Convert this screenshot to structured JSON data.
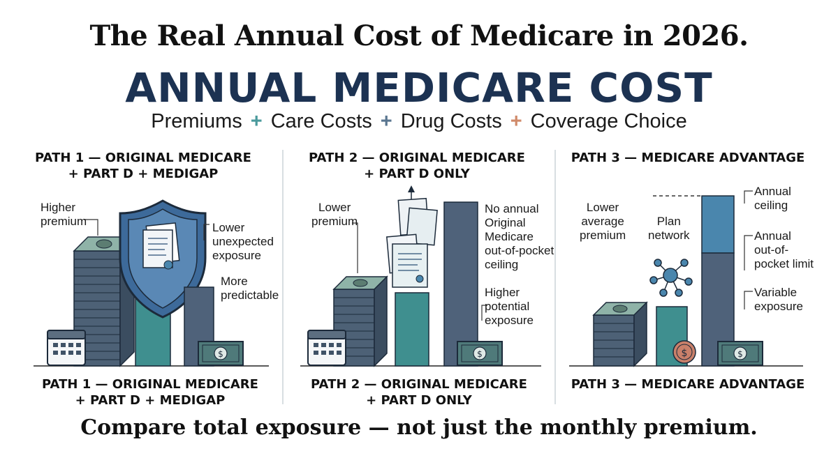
{
  "title": "The Real Annual Cost of Medicare in 2026.",
  "headline": "ANNUAL MEDICARE COST",
  "formula": {
    "terms": [
      "Premiums",
      "Care Costs",
      "Drug Costs",
      "Coverage Choice"
    ],
    "plus_colors": [
      "#4a9a9c",
      "#5a7690",
      "#d08a6a"
    ]
  },
  "paths": [
    {
      "title_line1": "PATH 1 — ORIGINAL MEDICARE",
      "title_line2": "+ PART D + MEDIGAP",
      "labels": {
        "premium_l1": "Higher",
        "premium_l2": "premium",
        "exposure_l1": "Lower",
        "exposure_l2": "unexpected",
        "exposure_l3": "exposure",
        "predict_l1": "More",
        "predict_l2": "predictable"
      }
    },
    {
      "title_line1": "PATH 2 — ORIGINAL MEDICARE",
      "title_line2": "+ PART D ONLY",
      "labels": {
        "premium_l1": "Lower",
        "premium_l2": "premium",
        "ceiling_l1": "No annual",
        "ceiling_l2": "Original",
        "ceiling_l3": "Medicare",
        "ceiling_l4": "out-of-pocket",
        "ceiling_l5": "ceiling",
        "potential_l1": "Higher",
        "potential_l2": "potential",
        "potential_l3": "exposure"
      }
    },
    {
      "title_line1": "PATH 3 — MEDICARE ADVANTAGE",
      "title_line2": "",
      "labels": {
        "premium_l1": "Lower",
        "premium_l2": "average",
        "premium_l3": "premium",
        "network_l1": "Plan",
        "network_l2": "network",
        "ceiling_l1": "Annual",
        "ceiling_l2": "ceiling",
        "limit_l1": "Annual",
        "limit_l2": "out-of-",
        "limit_l3": "pocket limit",
        "variable_l1": "Variable",
        "variable_l2": "exposure"
      }
    }
  ],
  "colors": {
    "navy": "#1c3252",
    "teal": "#3f8f8f",
    "slate": "#4f627a",
    "steel": "#4a86ad",
    "copper": "#c9806a"
  },
  "footer": "Compare total exposure — not just the monthly premium."
}
